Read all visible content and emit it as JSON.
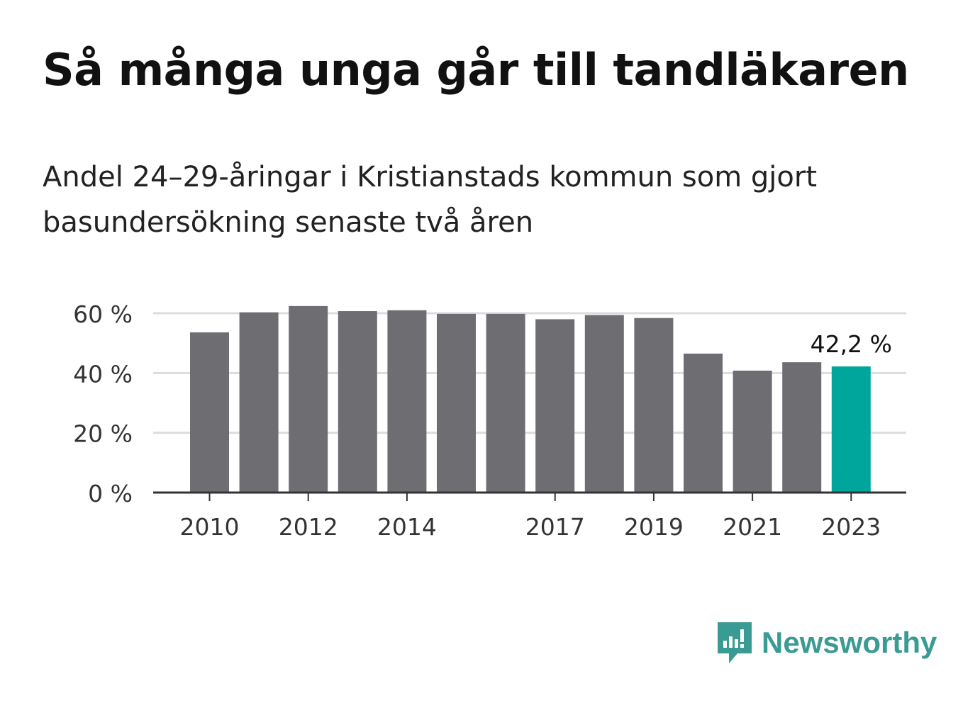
{
  "title": "Så många unga går till tandläkaren",
  "subtitle": "Andel 24–29-åringar i Kristianstads kommun som gjort basundersökning senaste två åren",
  "brand": {
    "name": "Newsworthy",
    "icon": "newsworthy-logo-icon",
    "color": "#3a9a94"
  },
  "colors": {
    "bar": "#6e6d72",
    "highlight": "#00a69b",
    "grid": "#dddddd",
    "axis": "#333333"
  },
  "chart_data": {
    "type": "bar",
    "categories": [
      "2010",
      "2011",
      "2012",
      "2013",
      "2014",
      "2015",
      "2016",
      "2017",
      "2018",
      "2019",
      "2020",
      "2021",
      "2022",
      "2023"
    ],
    "values": [
      53.6,
      60.3,
      62.4,
      60.7,
      61.0,
      59.8,
      59.8,
      58.0,
      59.4,
      58.4,
      46.5,
      40.8,
      43.6,
      42.2
    ],
    "x_tick_labels": [
      "2010",
      "",
      "2012",
      "",
      "2014",
      "",
      "",
      "2017",
      "",
      "2019",
      "",
      "2021",
      "",
      "2023"
    ],
    "y_ticks": [
      0,
      20,
      40,
      60
    ],
    "y_tick_labels": [
      "0 %",
      "20 %",
      "40 %",
      "60 %"
    ],
    "ylim": [
      0,
      60
    ],
    "highlight_index": 13,
    "highlight_label": "42,2 %",
    "grid": true
  }
}
